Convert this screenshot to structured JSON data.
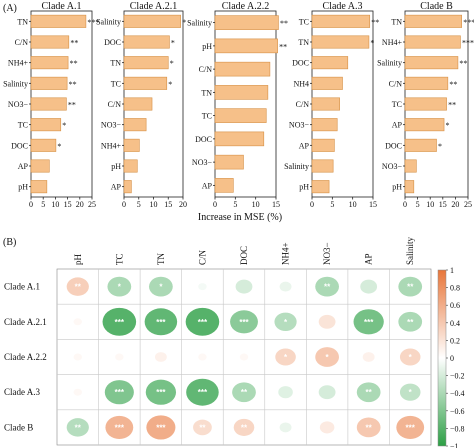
{
  "panel_a": {
    "tag": "(A)",
    "xlabel": "Increase in MSE (%)",
    "bar_color": "#f6c089",
    "bar_stroke": "#d69045",
    "chart_data": [
      {
        "type": "bar",
        "title": "Clade A.1",
        "orientation": "horizontal",
        "categories": [
          "TN",
          "C/N",
          "NH4+",
          "Salinity",
          "NO3−",
          "TC",
          "DOC",
          "AP",
          "pH"
        ],
        "values": [
          22.5,
          15.5,
          15.2,
          14.8,
          14.5,
          12.2,
          10.2,
          7.5,
          6.5
        ],
        "significance": [
          "***",
          "**",
          "**",
          "**",
          "**",
          "*",
          "*",
          "",
          ""
        ],
        "xlim": [
          0,
          25
        ],
        "xticks": [
          "0",
          "5",
          "10",
          "15",
          "20",
          "25"
        ]
      },
      {
        "type": "bar",
        "title": "Clade A.2.1",
        "orientation": "horizontal",
        "categories": [
          "Salinity",
          "DOC",
          "TN",
          "TC",
          "C/N",
          "NO3−",
          "NH4+",
          "pH",
          "AP"
        ],
        "values": [
          19.2,
          15.4,
          15.0,
          14.5,
          9.5,
          7.5,
          5.2,
          4.5,
          2.5
        ],
        "significance": [
          "*",
          "*",
          "*",
          "*",
          "",
          "",
          "",
          "",
          ""
        ],
        "xlim": [
          0,
          20
        ],
        "xticks": [
          "0",
          "5",
          "10",
          "15",
          "20"
        ]
      },
      {
        "type": "bar",
        "title": "Clade A.2.2",
        "orientation": "horizontal",
        "categories": [
          "Salinity",
          "pH",
          "C/N",
          "TN",
          "TC",
          "DOC",
          "NO3−",
          "AP"
        ],
        "values": [
          15.6,
          15.4,
          13.5,
          13.0,
          12.6,
          12.0,
          7.0,
          4.5
        ],
        "significance": [
          "**",
          "**",
          "",
          "",
          "",
          "",
          "",
          ""
        ],
        "xlim": [
          0,
          15
        ],
        "xticks": [
          "0",
          "5",
          "10",
          "15"
        ]
      },
      {
        "type": "bar",
        "title": "Clade A.3",
        "orientation": "horizontal",
        "categories": [
          "TC",
          "TN",
          "DOC",
          "NH4",
          "C/N",
          "NO3−",
          "AP",
          "Salinity",
          "pH"
        ],
        "values": [
          14.2,
          14.0,
          8.8,
          7.5,
          6.8,
          6.2,
          5.5,
          5.2,
          4.2
        ],
        "significance": [
          "**",
          "*",
          "",
          "",
          "",
          "",
          "",
          "",
          ""
        ],
        "xlim": [
          0,
          15
        ],
        "xticks": [
          "0",
          "5",
          "10",
          "15"
        ]
      },
      {
        "type": "bar",
        "title": "Clade B",
        "orientation": "horizontal",
        "categories": [
          "TN",
          "NH4+",
          "Salinity",
          "C/N",
          "TC",
          "AP",
          "DOC",
          "NO3−",
          "pH"
        ],
        "values": [
          22.5,
          22.0,
          21.0,
          17.0,
          16.5,
          15.5,
          12.5,
          4.5,
          3.5
        ],
        "significance": [
          "***",
          "***",
          "**",
          "**",
          "**",
          "*",
          "*",
          "",
          ""
        ],
        "xlim": [
          0,
          25
        ],
        "xticks": [
          "0",
          "5",
          "10",
          "15",
          "20",
          "25"
        ]
      }
    ]
  },
  "panel_b": {
    "tag": "(B)",
    "chart_data": {
      "type": "heatmap",
      "columns": [
        "pH",
        "TC",
        "TN",
        "C/N",
        "DOC",
        "NH4+",
        "NO3−",
        "AP",
        "Salinity"
      ],
      "rows": [
        "Clade A.1",
        "Clade A.2.1",
        "Clade A.2.2",
        "Clade A.3",
        "Clade B"
      ],
      "values": [
        [
          0.35,
          -0.4,
          -0.4,
          -0.05,
          -0.2,
          -0.1,
          -0.4,
          -0.2,
          -0.4
        ],
        [
          0.05,
          -0.8,
          -0.75,
          -0.8,
          -0.55,
          -0.35,
          0.2,
          -0.65,
          -0.4
        ],
        [
          0.05,
          0.05,
          0.1,
          0.05,
          0.05,
          0.3,
          0.4,
          0.1,
          0.3
        ],
        [
          0.05,
          -0.6,
          -0.65,
          -0.75,
          -0.4,
          -0.15,
          -0.2,
          -0.4,
          -0.3
        ],
        [
          -0.35,
          0.55,
          0.6,
          0.25,
          0.3,
          -0.1,
          0.15,
          0.4,
          0.55
        ]
      ],
      "significance": [
        [
          "**",
          "*",
          "*",
          "",
          "",
          "",
          "**",
          "",
          "**"
        ],
        [
          "",
          "***",
          "***",
          "***",
          "***",
          "*",
          "",
          "***",
          "**"
        ],
        [
          "",
          "",
          "",
          "",
          "",
          "*",
          "*",
          "",
          "*"
        ],
        [
          "",
          "***",
          "***",
          "***",
          "**",
          "",
          "",
          "**",
          "*"
        ],
        [
          "**",
          "***",
          "***",
          "**",
          "**",
          "",
          "",
          "**",
          "***"
        ]
      ],
      "colorbar": {
        "range": [
          -1,
          1
        ],
        "ticks": [
          "1",
          "0.8",
          "0.6",
          "0.4",
          "0.2",
          "0",
          "−0.2",
          "−0.4",
          "−0.6",
          "−0.8",
          "−1"
        ],
        "colors": {
          "positive": "#e8763a",
          "neutral": "#ffffff",
          "negative": "#2c9f45"
        }
      }
    }
  }
}
